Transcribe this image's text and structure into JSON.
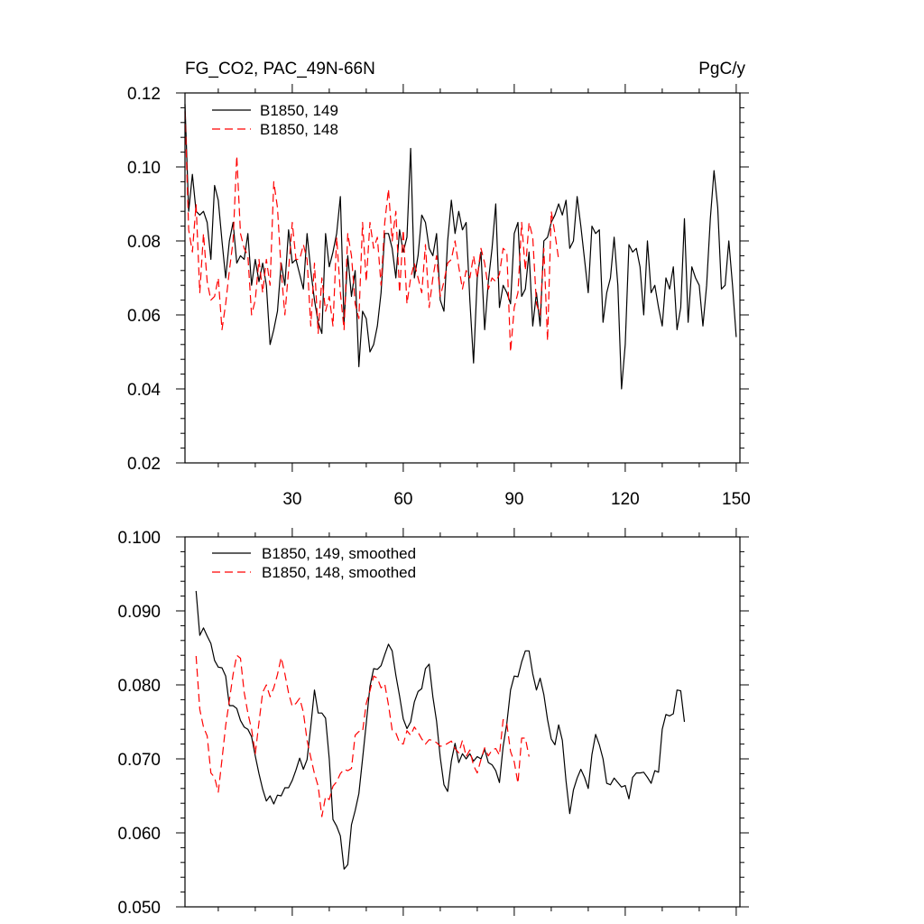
{
  "chart_data": [
    {
      "type": "line",
      "title_left": "FG_CO2, PAC_49N-66N",
      "title_right": "PgC/y",
      "xlim": [
        1,
        151
      ],
      "ylim": [
        0.02,
        0.12
      ],
      "x_ticks": [
        30,
        60,
        90,
        120,
        150
      ],
      "y_ticks": [
        0.02,
        0.04,
        0.06,
        0.08,
        0.1,
        0.12
      ],
      "y_tick_labels": [
        "0.02",
        "0.04",
        "0.06",
        "0.08",
        "0.10",
        "0.12"
      ],
      "legend_position": "top-left",
      "series": [
        {
          "name": "B1850, 149",
          "color": "#000000",
          "dash": "solid",
          "x_start": 1,
          "values": [
            0.117,
            0.088,
            0.098,
            0.088,
            0.087,
            0.088,
            0.085,
            0.075,
            0.095,
            0.091,
            0.08,
            0.07,
            0.08,
            0.085,
            0.074,
            0.076,
            0.075,
            0.082,
            0.068,
            0.075,
            0.069,
            0.074,
            0.068,
            0.052,
            0.056,
            0.061,
            0.074,
            0.068,
            0.083,
            0.074,
            0.075,
            0.071,
            0.067,
            0.082,
            0.072,
            0.064,
            0.058,
            0.055,
            0.082,
            0.073,
            0.077,
            0.082,
            0.092,
            0.058,
            0.076,
            0.065,
            0.072,
            0.046,
            0.061,
            0.059,
            0.05,
            0.052,
            0.057,
            0.066,
            0.082,
            0.082,
            0.078,
            0.07,
            0.083,
            0.077,
            0.081,
            0.105,
            0.07,
            0.076,
            0.087,
            0.085,
            0.078,
            0.076,
            0.082,
            0.064,
            0.061,
            0.08,
            0.091,
            0.082,
            0.088,
            0.083,
            0.085,
            0.064,
            0.047,
            0.07,
            0.077,
            0.056,
            0.069,
            0.078,
            0.09,
            0.062,
            0.068,
            0.066,
            0.063,
            0.082,
            0.085,
            0.065,
            0.067,
            0.077,
            0.057,
            0.066,
            0.057,
            0.08,
            0.081,
            0.085,
            0.087,
            0.09,
            0.087,
            0.091,
            0.078,
            0.08,
            0.092,
            0.084,
            0.075,
            0.066,
            0.084,
            0.082,
            0.083,
            0.058,
            0.066,
            0.07,
            0.081,
            0.068,
            0.04,
            0.052,
            0.079,
            0.077,
            0.078,
            0.073,
            0.06,
            0.08,
            0.066,
            0.068,
            0.062,
            0.057,
            0.07,
            0.067,
            0.073,
            0.056,
            0.062,
            0.086,
            0.058,
            0.073,
            0.07,
            0.068,
            0.057,
            0.068,
            0.086,
            0.099,
            0.089,
            0.067,
            0.068,
            0.08,
            0.068,
            0.054
          ]
        },
        {
          "name": "B1850, 148",
          "color": "#ff0000",
          "dash": "dashed",
          "x_start": 1,
          "values": [
            0.115,
            0.083,
            0.077,
            0.09,
            0.066,
            0.082,
            0.069,
            0.064,
            0.065,
            0.07,
            0.056,
            0.063,
            0.072,
            0.08,
            0.103,
            0.082,
            0.078,
            0.076,
            0.06,
            0.064,
            0.075,
            0.066,
            0.075,
            0.068,
            0.096,
            0.089,
            0.072,
            0.06,
            0.072,
            0.085,
            0.075,
            0.075,
            0.079,
            0.075,
            0.057,
            0.074,
            0.055,
            0.07,
            0.061,
            0.065,
            0.057,
            0.081,
            0.066,
            0.056,
            0.082,
            0.076,
            0.063,
            0.059,
            0.085,
            0.069,
            0.085,
            0.078,
            0.081,
            0.068,
            0.085,
            0.094,
            0.08,
            0.088,
            0.066,
            0.083,
            0.063,
            0.07,
            0.074,
            0.07,
            0.066,
            0.079,
            0.062,
            0.07,
            0.076,
            0.065,
            0.069,
            0.074,
            0.075,
            0.08,
            0.073,
            0.067,
            0.072,
            0.07,
            0.076,
            0.07,
            0.078,
            0.074,
            0.067,
            0.07,
            0.069,
            0.071,
            0.078,
            0.077,
            0.05,
            0.062,
            0.066,
            0.085,
            0.072,
            0.085,
            0.081,
            0.063,
            0.06,
            0.078,
            0.053,
            0.088,
            0.082,
            0.075
          ]
        }
      ]
    },
    {
      "type": "line",
      "xlim": [
        1,
        151
      ],
      "ylim": [
        0.05,
        0.1
      ],
      "x_ticks": [
        30,
        60,
        90,
        120,
        150
      ],
      "y_ticks": [
        0.05,
        0.06,
        0.07,
        0.08,
        0.09,
        0.1
      ],
      "y_tick_labels": [
        "0.050",
        "0.060",
        "0.070",
        "0.080",
        "0.090",
        "0.100"
      ],
      "legend_position": "top-left",
      "series": [
        {
          "name": "B1850, 149, smoothed",
          "color": "#000000",
          "dash": "solid",
          "x_start": 4,
          "values": [
            0.0927,
            0.0867,
            0.0877,
            0.0866,
            0.0856,
            0.0833,
            0.0824,
            0.0823,
            0.0812,
            0.0772,
            0.0772,
            0.0768,
            0.0752,
            0.0743,
            0.074,
            0.073,
            0.0704,
            0.068,
            0.0659,
            0.0643,
            0.065,
            0.0639,
            0.0651,
            0.065,
            0.0661,
            0.0661,
            0.0671,
            0.0685,
            0.0701,
            0.0686,
            0.0699,
            0.0744,
            0.0793,
            0.0762,
            0.0762,
            0.0755,
            0.07,
            0.0618,
            0.0609,
            0.0596,
            0.0551,
            0.0557,
            0.0611,
            0.063,
            0.0653,
            0.07,
            0.0748,
            0.0798,
            0.0822,
            0.0821,
            0.0826,
            0.0841,
            0.0855,
            0.0846,
            0.0813,
            0.0785,
            0.0754,
            0.0741,
            0.075,
            0.0777,
            0.0791,
            0.0795,
            0.0822,
            0.0828,
            0.0784,
            0.0751,
            0.0702,
            0.0665,
            0.0656,
            0.0697,
            0.0721,
            0.0695,
            0.0707,
            0.07,
            0.0707,
            0.0697,
            0.0703,
            0.07,
            0.0713,
            0.0695,
            0.0692,
            0.0684,
            0.0668,
            0.0717,
            0.0748,
            0.0793,
            0.0812,
            0.0811,
            0.0831,
            0.0846,
            0.0846,
            0.0815,
            0.0793,
            0.0809,
            0.0787,
            0.0753,
            0.0727,
            0.0719,
            0.0746,
            0.0725,
            0.067,
            0.0626,
            0.0658,
            0.0674,
            0.0686,
            0.0675,
            0.066,
            0.0706,
            0.0733,
            0.0719,
            0.07,
            0.0667,
            0.0665,
            0.0674,
            0.0668,
            0.0662,
            0.0664,
            0.0646,
            0.0675,
            0.0681,
            0.0681,
            0.0682,
            0.0675,
            0.0667,
            0.0684,
            0.0682,
            0.074,
            0.076,
            0.0758,
            0.0761,
            0.0793,
            0.0792,
            0.075
          ]
        },
        {
          "name": "B1850, 148, smoothed",
          "color": "#ff0000",
          "dash": "dashed",
          "x_start": 4,
          "values": [
            0.0839,
            0.0767,
            0.0743,
            0.0731,
            0.0681,
            0.0675,
            0.0655,
            0.0699,
            0.0745,
            0.0779,
            0.0814,
            0.084,
            0.0836,
            0.079,
            0.0762,
            0.074,
            0.0707,
            0.0749,
            0.079,
            0.08,
            0.0784,
            0.0796,
            0.0814,
            0.0837,
            0.0815,
            0.0789,
            0.0771,
            0.0775,
            0.0782,
            0.0763,
            0.0725,
            0.0702,
            0.068,
            0.0663,
            0.0622,
            0.0649,
            0.0645,
            0.0663,
            0.0669,
            0.068,
            0.0686,
            0.0684,
            0.0687,
            0.0732,
            0.0737,
            0.0737,
            0.0775,
            0.0792,
            0.0812,
            0.0809,
            0.0796,
            0.0801,
            0.0773,
            0.0739,
            0.0735,
            0.0722,
            0.072,
            0.0738,
            0.0732,
            0.0743,
            0.0736,
            0.0727,
            0.072,
            0.0726,
            0.0725,
            0.0722,
            0.0717,
            0.0718,
            0.0721,
            0.0724,
            0.0714,
            0.0708,
            0.0725,
            0.0703,
            0.0712,
            0.0691,
            0.0681,
            0.0699,
            0.0715,
            0.0704,
            0.0712,
            0.0714,
            0.0705,
            0.0753,
            0.0747,
            0.071,
            0.0696,
            0.0667,
            0.0728,
            0.0728,
            0.0703
          ]
        }
      ]
    }
  ]
}
